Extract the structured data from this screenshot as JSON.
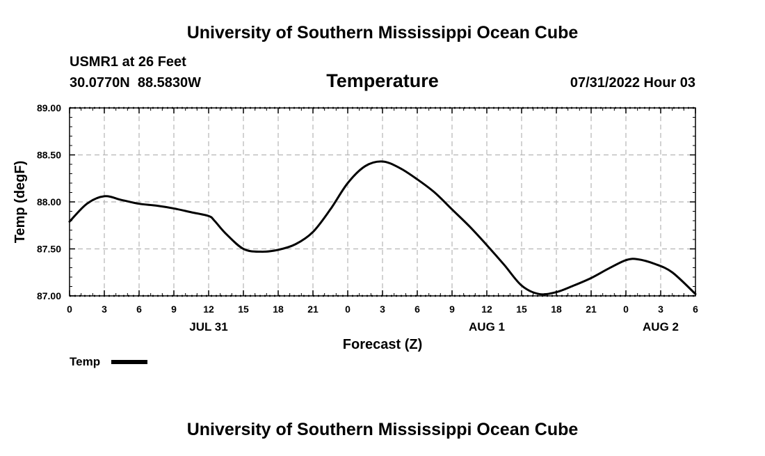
{
  "header": {
    "title": "University of Southern Mississippi Ocean Cube",
    "station": "USMR1 at 26 Feet",
    "coords": "30.0770N  88.5830W",
    "variable": "Temperature",
    "datetime": "07/31/2022 Hour 03"
  },
  "footer": {
    "title": "University of Southern Mississippi Ocean Cube"
  },
  "chart_data": {
    "type": "line",
    "title": "Temperature",
    "xlabel": "Forecast (Z)",
    "ylabel": "Temp (degF)",
    "ylim": [
      87.0,
      89.0
    ],
    "xlim": [
      0,
      54
    ],
    "x_units": "forecast hours from 07/31/2022 00Z",
    "grid": true,
    "y_ticks": [
      "87.00",
      "87.50",
      "88.00",
      "88.50",
      "89.00"
    ],
    "x_ticks": [
      {
        "hour": 0,
        "label": "0"
      },
      {
        "hour": 3,
        "label": "3"
      },
      {
        "hour": 6,
        "label": "6"
      },
      {
        "hour": 9,
        "label": "9"
      },
      {
        "hour": 12,
        "label": "12"
      },
      {
        "hour": 15,
        "label": "15"
      },
      {
        "hour": 18,
        "label": "18"
      },
      {
        "hour": 21,
        "label": "21"
      },
      {
        "hour": 24,
        "label": "0"
      },
      {
        "hour": 27,
        "label": "3"
      },
      {
        "hour": 30,
        "label": "6"
      },
      {
        "hour": 33,
        "label": "9"
      },
      {
        "hour": 36,
        "label": "12"
      },
      {
        "hour": 39,
        "label": "15"
      },
      {
        "hour": 42,
        "label": "18"
      },
      {
        "hour": 45,
        "label": "21"
      },
      {
        "hour": 48,
        "label": "0"
      },
      {
        "hour": 51,
        "label": "3"
      },
      {
        "hour": 54,
        "label": "6"
      }
    ],
    "day_labels": [
      {
        "hour": 12,
        "label": "JUL 31"
      },
      {
        "hour": 36,
        "label": "AUG 1"
      },
      {
        "hour": 51,
        "label": "AUG 2"
      }
    ],
    "legend": {
      "label": "Temp",
      "position": "bottom-left"
    },
    "series": [
      {
        "name": "Temp",
        "color": "#000000",
        "x": [
          0,
          1.5,
          3,
          4.5,
          6,
          7.5,
          9,
          10.5,
          12,
          12.5,
          13.5,
          15,
          16.5,
          18,
          19.5,
          21,
          22.5,
          24,
          25.5,
          27,
          28.5,
          30,
          31.5,
          33,
          34.5,
          36,
          37.5,
          39,
          40.5,
          42,
          43.5,
          45,
          46.5,
          48,
          49,
          50.5,
          52,
          54
        ],
        "y": [
          87.79,
          87.98,
          88.06,
          88.02,
          87.98,
          87.96,
          87.93,
          87.89,
          87.85,
          87.8,
          87.66,
          87.5,
          87.47,
          87.49,
          87.55,
          87.68,
          87.92,
          88.2,
          88.38,
          88.43,
          88.36,
          88.24,
          88.1,
          87.92,
          87.74,
          87.54,
          87.33,
          87.11,
          87.02,
          87.04,
          87.11,
          87.19,
          87.29,
          87.38,
          87.39,
          87.34,
          87.25,
          87.02
        ]
      }
    ]
  }
}
